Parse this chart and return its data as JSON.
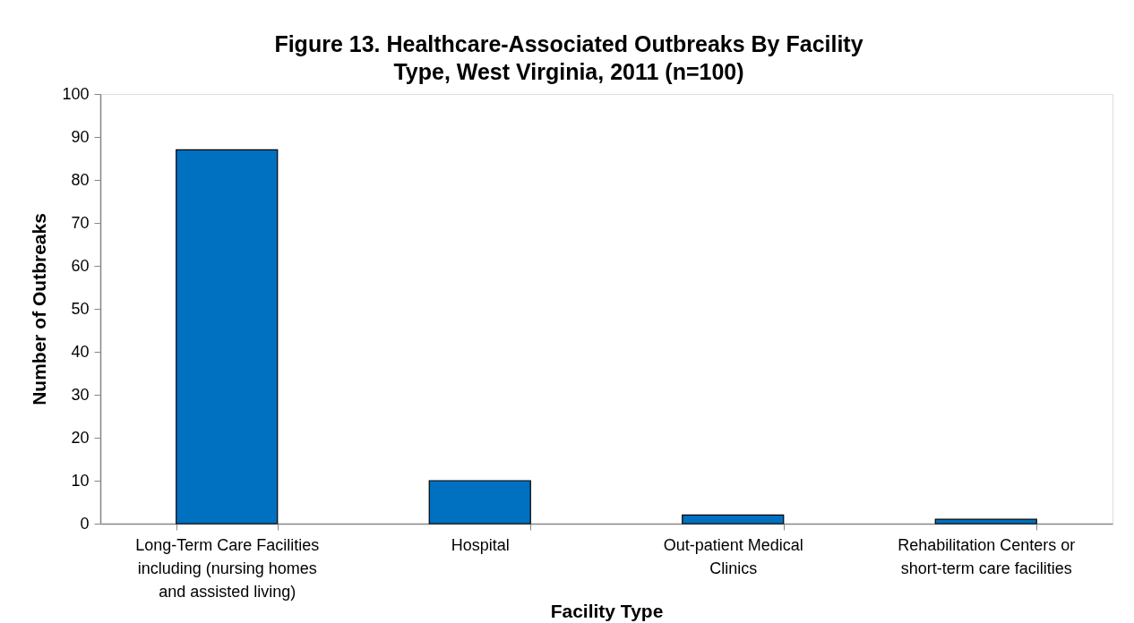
{
  "chart_data": {
    "type": "bar",
    "title": "Figure 13. Healthcare-Associated Outbreaks By Facility Type, West Virginia, 2011 (n=100)",
    "xlabel": "Facility Type",
    "ylabel": "Number of Outbreaks",
    "categories": [
      "Long-Term Care Facilities including (nursing homes and assisted living)",
      "Hospital",
      "Out-patient Medical Clinics",
      "Rehabilitation Centers or short-term care facilities"
    ],
    "values": [
      87,
      10,
      2,
      1
    ],
    "color": "#0070c0",
    "ylim": [
      0,
      100
    ],
    "yticks": [
      0,
      10,
      20,
      30,
      40,
      50,
      60,
      70,
      80,
      90,
      100
    ],
    "grid": false
  }
}
